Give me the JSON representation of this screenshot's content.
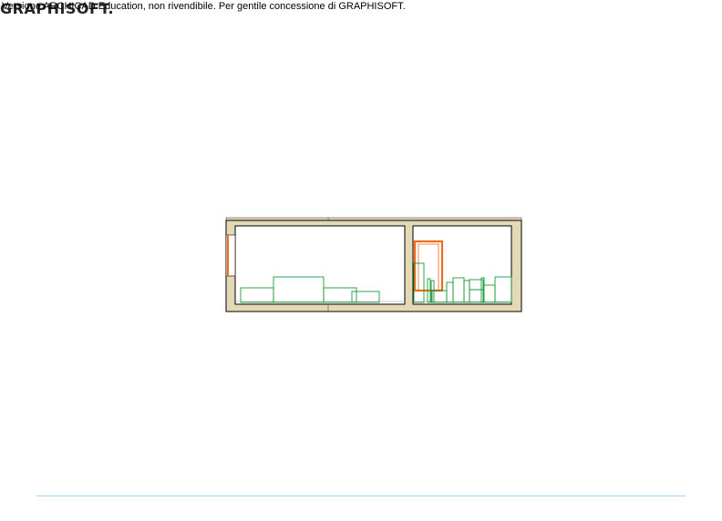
{
  "watermark": {
    "text": "Versione ARCHICAD Education, non rivendibile. Per gentile concessione di GRAPHISOFT.",
    "logo": "GRAPHISOFT."
  },
  "colors": {
    "wall_fill": "#e4d9b6",
    "outline": "#000000",
    "door": "#f26a1b",
    "furniture": "#1a9a3a",
    "footer": "#9fd3f0"
  }
}
